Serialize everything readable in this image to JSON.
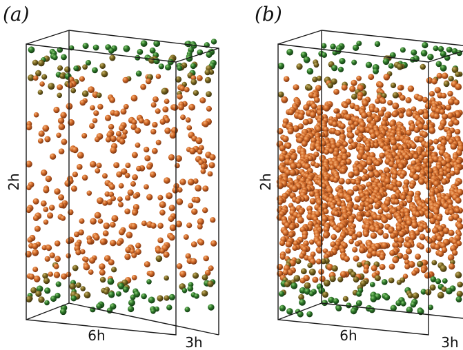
{
  "panels": [
    {
      "id": "a",
      "label": "(a)",
      "height_label": "2h",
      "width_label": "6h",
      "depth_label": "3h",
      "particle_count": 520,
      "center_density_ratio": 1.0
    },
    {
      "id": "b",
      "label": "(b)",
      "height_label": "2h",
      "width_label": "6h",
      "depth_label": "3h",
      "particle_count": 1700,
      "center_density_ratio": 2.4
    }
  ],
  "colors": {
    "wall_particle": "#2f7a2a",
    "bulk_particle": "#c8621f",
    "box_edge": "#1a1a1a"
  }
}
